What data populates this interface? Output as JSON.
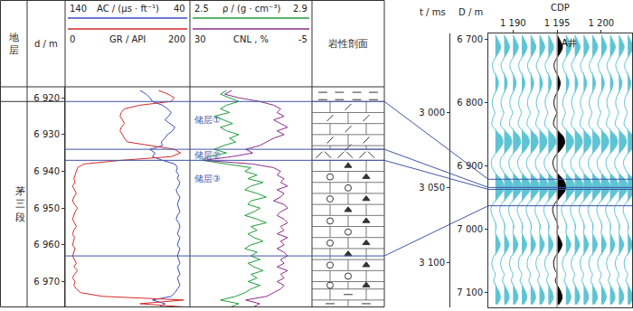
{
  "chart_data": [
    {
      "type": "well_log",
      "stratum_header": "地层",
      "stratum": {
        "name": "茅三段",
        "top": 6921
      },
      "depth_label": "d / m",
      "ylim": [
        6977,
        6917
      ],
      "yticks": [
        {
          "value": 6920,
          "label": "6 920"
        },
        {
          "value": 6930,
          "label": "6 930"
        },
        {
          "value": 6940,
          "label": "6 940"
        },
        {
          "value": 6950,
          "label": "6 950"
        },
        {
          "value": 6960,
          "label": "6 960"
        },
        {
          "value": 6970,
          "label": "6 970"
        }
      ],
      "depth": [
        6918,
        6919,
        6920,
        6921,
        6922,
        6923,
        6924,
        6925,
        6926,
        6927,
        6928,
        6929,
        6930,
        6931,
        6932,
        6933,
        6934,
        6935,
        6936,
        6937,
        6938,
        6939,
        6940,
        6941,
        6942,
        6943,
        6944,
        6945,
        6946,
        6947,
        6948,
        6949,
        6950,
        6951,
        6952,
        6953,
        6954,
        6955,
        6956,
        6957,
        6958,
        6959,
        6960,
        6961,
        6962,
        6963,
        6964,
        6965,
        6966,
        6967,
        6968,
        6969,
        6970,
        6971,
        6972,
        6973,
        6974,
        6975,
        6976,
        6977
      ],
      "tracks": [
        {
          "series": [
            {
              "name": "AC / (μs · ft⁻¹)",
              "color": "#3c4bbf",
              "xlim": [
                140,
                40
              ],
              "values": [
                80,
                75,
                72,
                70,
                62,
                58,
                55,
                57,
                60,
                56,
                52,
                54,
                58,
                60,
                63,
                62,
                72,
                68,
                70,
                62,
                52,
                50,
                51,
                49,
                50,
                48,
                49,
                51,
                50,
                48,
                49,
                50,
                49,
                48,
                50,
                51,
                49,
                48,
                49,
                50,
                48,
                49,
                50,
                48,
                49,
                50,
                49,
                48,
                50,
                49,
                48,
                50,
                49,
                48,
                50,
                52,
                55,
                70,
                60,
                65
              ]
            },
            {
              "name": "GR / API",
              "color": "#d42a2a",
              "xlim": [
                0,
                200
              ],
              "values": [
                150,
                165,
                175,
                170,
                120,
                95,
                90,
                88,
                92,
                95,
                90,
                88,
                92,
                95,
                100,
                140,
                175,
                185,
                170,
                90,
                30,
                20,
                18,
                15,
                14,
                16,
                12,
                15,
                18,
                14,
                12,
                15,
                20,
                16,
                14,
                12,
                15,
                18,
                14,
                12,
                15,
                13,
                12,
                16,
                14,
                12,
                15,
                18,
                14,
                20,
                15,
                12,
                16,
                14,
                18,
                25,
                60,
                190,
                120,
                200
              ]
            }
          ]
        },
        {
          "series": [
            {
              "name": "ρ / (g · cm⁻³)",
              "color": "#1f9e3a",
              "xlim": [
                2.5,
                2.9
              ],
              "values": [
                2.62,
                2.6,
                2.63,
                2.66,
                2.62,
                2.6,
                2.63,
                2.58,
                2.61,
                2.64,
                2.6,
                2.62,
                2.66,
                2.63,
                2.65,
                2.61,
                2.58,
                2.62,
                2.56,
                2.54,
                2.62,
                2.7,
                2.68,
                2.72,
                2.69,
                2.74,
                2.7,
                2.68,
                2.72,
                2.75,
                2.7,
                2.69,
                2.73,
                2.71,
                2.68,
                2.72,
                2.75,
                2.7,
                2.72,
                2.69,
                2.71,
                2.74,
                2.7,
                2.68,
                2.72,
                2.7,
                2.73,
                2.69,
                2.71,
                2.74,
                2.7,
                2.72,
                2.69,
                2.73,
                2.7,
                2.68,
                2.65,
                2.6,
                2.66,
                2.63
              ]
            },
            {
              "name": "CNL , %",
              "color": "#8e2c8e",
              "xlim": [
                30,
                -5
              ],
              "values": [
                18,
                20,
                16,
                10,
                6,
                4,
                5,
                3,
                6,
                4,
                2,
                5,
                3,
                6,
                8,
                10,
                14,
                12,
                18,
                26,
                12,
                6,
                4,
                5,
                3,
                4,
                2,
                5,
                3,
                4,
                6,
                3,
                2,
                4,
                5,
                3,
                2,
                4,
                3,
                5,
                2,
                4,
                3,
                5,
                3,
                2,
                4,
                3,
                5,
                2,
                4,
                3,
                5,
                3,
                4,
                6,
                8,
                14,
                10,
                12
              ]
            }
          ]
        }
      ],
      "lithology_label": "岩性剖面",
      "lithology": [
        {
          "top": 6917,
          "bottom": 6921,
          "marker": "dash"
        },
        {
          "top": 6921,
          "bottom": 6934,
          "marker": "slant"
        },
        {
          "top": 6934,
          "bottom": 6937,
          "marker": "chevron"
        },
        {
          "top": 6937,
          "bottom": 6972,
          "marker": "triangle"
        },
        {
          "top": 6972,
          "bottom": 6977,
          "marker": "brick"
        }
      ],
      "zones": [
        {
          "label": "储层①",
          "top": 6921,
          "bottom": 6934
        },
        {
          "label": "储层②",
          "top": 6934,
          "bottom": 6937
        },
        {
          "label": "储层③",
          "top": 6937,
          "bottom": 6963
        }
      ],
      "color": "#3f55a8"
    },
    {
      "type": "seismic_section",
      "xlabel": "CDP",
      "xlim": [
        1187.2,
        1203.5
      ],
      "xticks": [
        {
          "value": 1190,
          "label": "1 190"
        },
        {
          "value": 1195,
          "label": "1 195"
        },
        {
          "value": 1200,
          "label": "1 200"
        }
      ],
      "ylabel": "t / ms",
      "ylim": [
        3130,
        2947
      ],
      "yticks": [
        {
          "value": 3000,
          "label": "3 000"
        },
        {
          "value": 3050,
          "label": "3 050"
        },
        {
          "value": 3100,
          "label": "3 100"
        }
      ],
      "y2label": "D / m",
      "y2lim": [
        7124,
        6690
      ],
      "y2ticks": [
        {
          "value": 6700,
          "label": "6 700"
        },
        {
          "value": 6800,
          "label": "6 800"
        },
        {
          "value": 6900,
          "label": "6 900"
        },
        {
          "value": 7000,
          "label": "7 000"
        },
        {
          "value": 7100,
          "label": "7 100"
        }
      ],
      "cdps": [
        1188,
        1189,
        1190,
        1191,
        1192,
        1193,
        1194,
        1195,
        1196,
        1197,
        1198,
        1199,
        1200,
        1201,
        1202,
        1203
      ],
      "time": [
        2948,
        2952,
        2956,
        2960,
        2964,
        2968,
        2972,
        2976,
        2980,
        2984,
        2988,
        2992,
        2996,
        3000,
        3004,
        3008,
        3012,
        3016,
        3020,
        3024,
        3028,
        3032,
        3036,
        3040,
        3044,
        3048,
        3052,
        3056,
        3060,
        3064,
        3068,
        3072,
        3076,
        3080,
        3084,
        3088,
        3092,
        3096,
        3100,
        3104,
        3108,
        3112,
        3116,
        3120,
        3124,
        3128
      ],
      "amplitude": [
        0,
        0.35,
        0.6,
        0.35,
        -0.1,
        -0.35,
        -0.2,
        0.15,
        0.35,
        0.2,
        -0.15,
        -0.35,
        -0.3,
        -0.05,
        -0.3,
        -0.4,
        0.1,
        0.7,
        0.85,
        0.5,
        -0.1,
        -0.45,
        -0.4,
        -0.05,
        0.6,
        0.95,
        0.9,
        0.4,
        -0.2,
        -0.5,
        -0.4,
        -0.1,
        0.1,
        0.0,
        0.3,
        0.55,
        0.3,
        -0.2,
        -0.4,
        -0.3,
        0.0,
        -0.2,
        0.1,
        0.45,
        0.55,
        0.2
      ],
      "color": "#5ec4d4",
      "well": {
        "name": "A井",
        "cdp": 1195,
        "color": "#000000"
      }
    }
  ]
}
